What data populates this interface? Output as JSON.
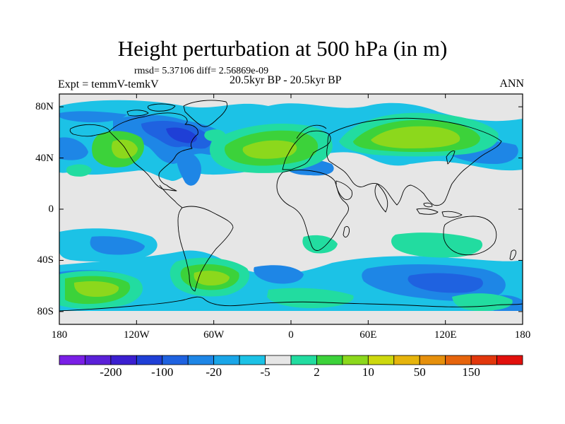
{
  "title": "Height perturbation at 500 hPa (in m)",
  "stats": "rmsd= 5.37106 diff= 2.56869e-09",
  "experiment": "Expt = temmV-temkV",
  "period": "20.5kyr BP - 20.5kyr BP",
  "season": "ANN",
  "lat_ticks": [
    {
      "label": "80N",
      "lat": 80
    },
    {
      "label": "40N",
      "lat": 40
    },
    {
      "label": "0",
      "lat": 0
    },
    {
      "label": "40S",
      "lat": -40
    },
    {
      "label": "80S",
      "lat": -80
    }
  ],
  "lon_ticks": [
    {
      "label": "180",
      "lon": -180
    },
    {
      "label": "120W",
      "lon": -120
    },
    {
      "label": "60W",
      "lon": -60
    },
    {
      "label": "0",
      "lon": 0
    },
    {
      "label": "60E",
      "lon": 60
    },
    {
      "label": "120E",
      "lon": 120
    },
    {
      "label": "180",
      "lon": 180
    }
  ],
  "colorbar": {
    "colors": [
      "#7a1fe6",
      "#5a20d8",
      "#3b1fd0",
      "#1f3fd6",
      "#1f62e0",
      "#1e86e6",
      "#1aa6e8",
      "#1cc2e6",
      "#e6e6e6",
      "#22dca0",
      "#3cd23a",
      "#8cd81c",
      "#cdd80e",
      "#e6b40c",
      "#e6900c",
      "#e6640c",
      "#e2370c",
      "#e2100c"
    ],
    "labels": [
      {
        "text": "-200",
        "after": 1
      },
      {
        "text": "-100",
        "after": 3
      },
      {
        "text": "-20",
        "after": 5
      },
      {
        "text": "-5",
        "after": 7
      },
      {
        "text": "2",
        "after": 9
      },
      {
        "text": "10",
        "after": 11
      },
      {
        "text": "50",
        "after": 13
      },
      {
        "text": "150",
        "after": 15
      }
    ]
  }
}
